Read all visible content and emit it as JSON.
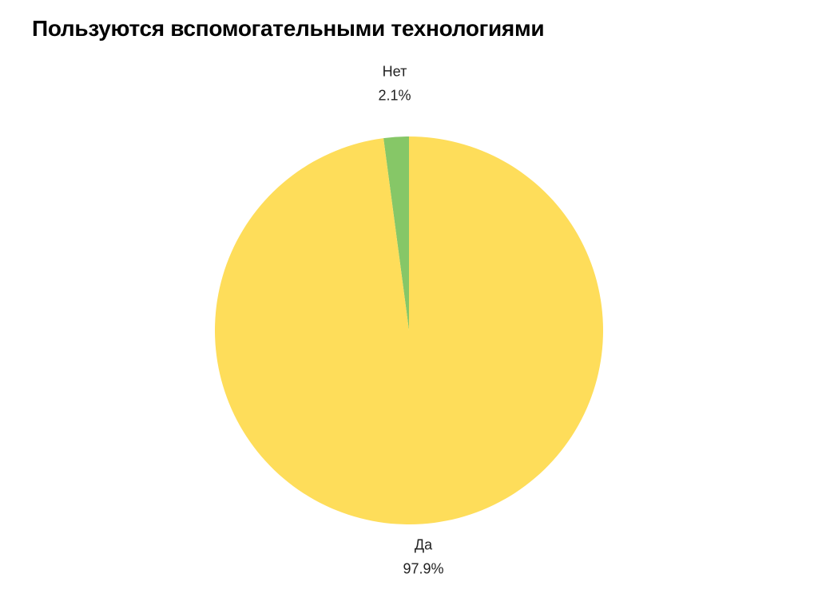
{
  "title": "Пользуются вспомогательными технологиями",
  "chart_data": {
    "type": "pie",
    "title": "Пользуются вспомогательными технологиями",
    "slices": [
      {
        "label": "Нет",
        "value": 2.1,
        "value_label": "2.1%",
        "color": "#86c767"
      },
      {
        "label": "Да",
        "value": 97.9,
        "value_label": "97.9%",
        "color": "#fedd5a"
      }
    ],
    "start": "top",
    "direction": "counterclockwise",
    "legend": "none"
  }
}
